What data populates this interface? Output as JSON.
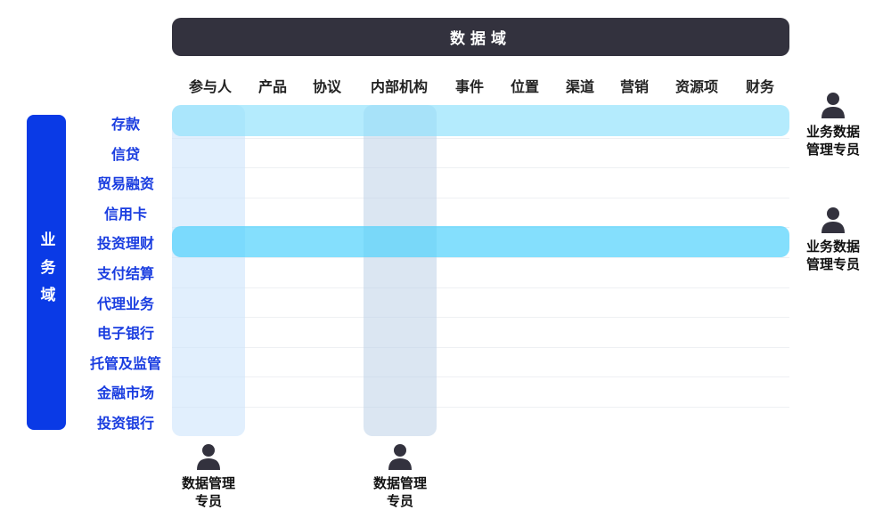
{
  "header": {
    "title": "数据域"
  },
  "columns": [
    "参与人",
    "产品",
    "协议",
    "内部机构",
    "事件",
    "位置",
    "渠道",
    "营销",
    "资源项",
    "财务"
  ],
  "side": {
    "title": "业务域"
  },
  "rows": [
    "存款",
    "信贷",
    "贸易融资",
    "信用卡",
    "投资理财",
    "支付结算",
    "代理业务",
    "电子银行",
    "托管及监管",
    "金融市场",
    "投资银行"
  ],
  "roles": {
    "right1": {
      "line1": "业务数据",
      "line2": "管理专员"
    },
    "right2": {
      "line1": "业务数据",
      "line2": "管理专员"
    },
    "bottom1": {
      "line1": "数据管理",
      "line2": "专员"
    },
    "bottom2": {
      "line1": "数据管理",
      "line2": "专员"
    }
  },
  "colors": {
    "header": "#33323e",
    "side": "#0a3ae6",
    "row_label": "#1a3de0",
    "highlight_row_1": "#b3ebfd",
    "highlight_row_2": "#7ddcfd",
    "highlight_col_1": "#e3f0fd",
    "highlight_col_2": "#dbe6f3"
  }
}
